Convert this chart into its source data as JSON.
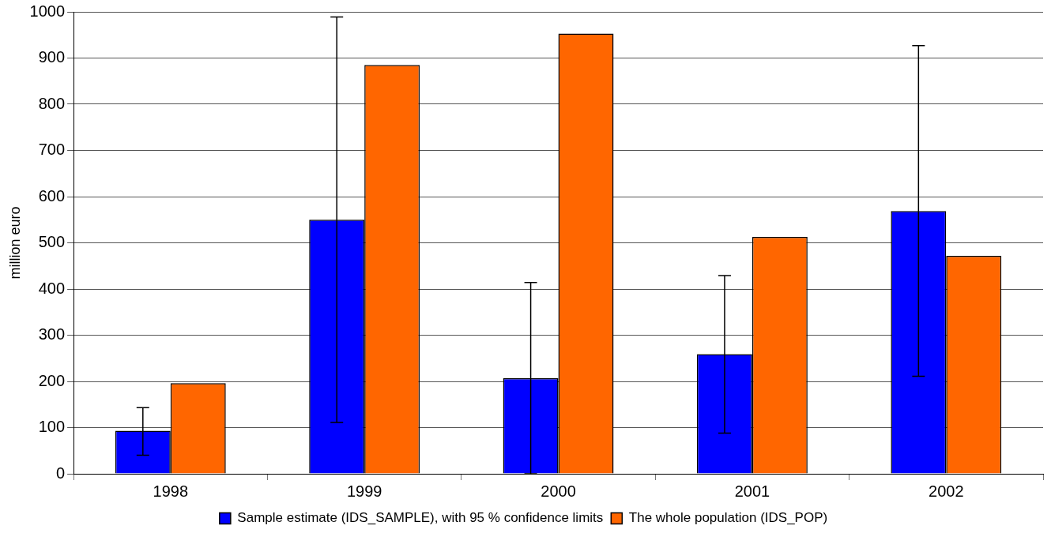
{
  "chart_data": {
    "type": "bar",
    "ylabel": "million euro",
    "categories": [
      "1998",
      "1999",
      "2000",
      "2001",
      "2002"
    ],
    "series": [
      {
        "name": "Sample estimate (IDS_SAMPLE), with 95 % confidence limits",
        "color": "#0000ff",
        "values": [
          93,
          550,
          207,
          259,
          569
        ],
        "errors": [
          [
            40,
            143
          ],
          [
            111,
            989
          ],
          [
            0,
            414
          ],
          [
            88,
            429
          ],
          [
            211,
            927
          ]
        ]
      },
      {
        "name": "The whole population (IDS_POP)",
        "color": "#ff6600",
        "values": [
          196,
          885,
          953,
          513,
          472
        ]
      }
    ],
    "ylim": [
      0,
      1000
    ],
    "yticks": [
      0,
      100,
      200,
      300,
      400,
      500,
      600,
      700,
      800,
      900,
      1000
    ],
    "grid": "y",
    "legend": "bottom"
  }
}
